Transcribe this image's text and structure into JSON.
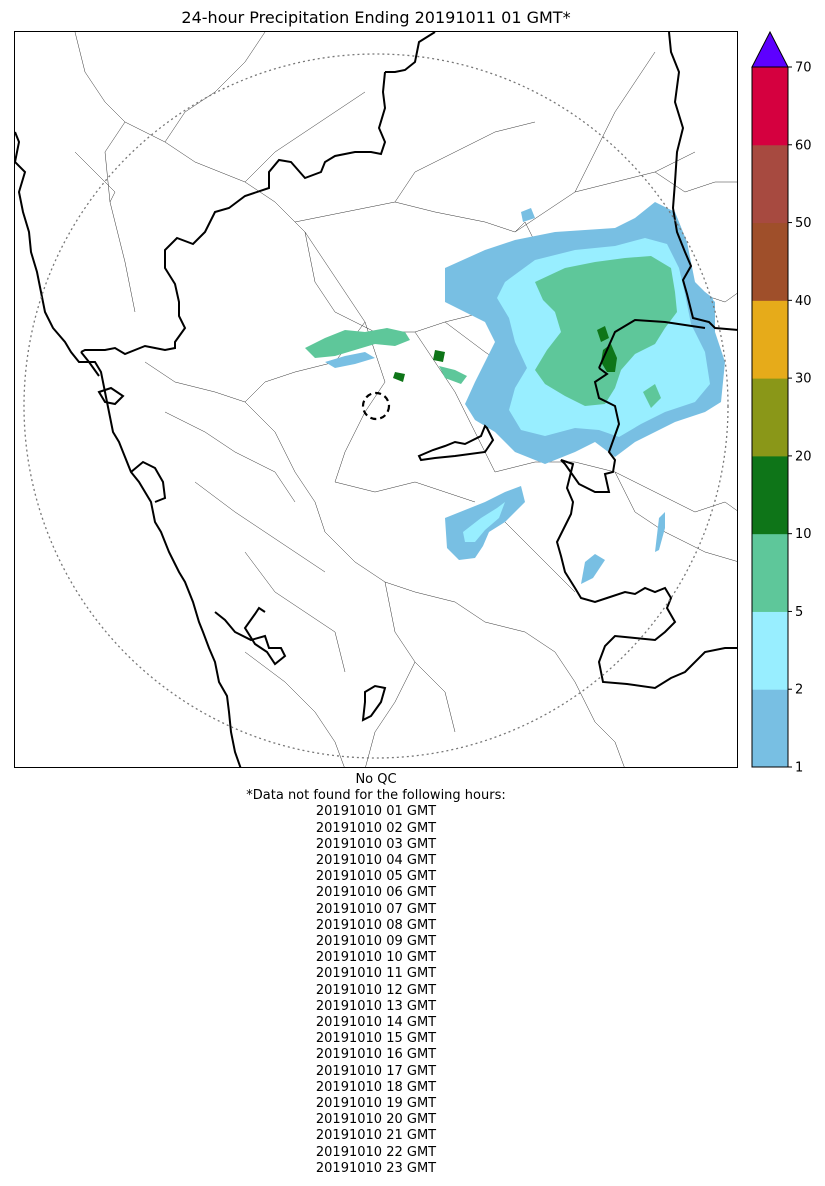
{
  "title": "24-hour Precipitation Ending 20191011 01 GMT*",
  "map": {
    "radar_range_ring": "dotted-circle",
    "radar_site_marker": "dashed-circle",
    "boundaries": [
      "country-borders",
      "state-borders",
      "district-borders",
      "coastline"
    ]
  },
  "colorbar": {
    "levels": [
      1,
      2,
      5,
      10,
      20,
      30,
      40,
      50,
      60,
      70
    ],
    "tick_labels": [
      "1",
      "2",
      "5",
      "10",
      "20",
      "30",
      "40",
      "50",
      "60",
      "70"
    ],
    "colors": [
      "#78bfe3",
      "#98eeff",
      "#5ec79a",
      "#0e7518",
      "#8a9718",
      "#e6ab1a",
      "#9f4f2a",
      "#a74a40",
      "#d5003f"
    ],
    "extend_color": "#5d00ff"
  },
  "notes": {
    "qc": "No QC",
    "missing_header": "*Data not found for the following hours:",
    "missing_hours": [
      "20191010 01 GMT",
      "20191010 02 GMT",
      "20191010 03 GMT",
      "20191010 04 GMT",
      "20191010 05 GMT",
      "20191010 06 GMT",
      "20191010 07 GMT",
      "20191010 08 GMT",
      "20191010 09 GMT",
      "20191010 10 GMT",
      "20191010 11 GMT",
      "20191010 12 GMT",
      "20191010 13 GMT",
      "20191010 14 GMT",
      "20191010 15 GMT",
      "20191010 16 GMT",
      "20191010 17 GMT",
      "20191010 18 GMT",
      "20191010 19 GMT",
      "20191010 20 GMT",
      "20191010 21 GMT",
      "20191010 22 GMT",
      "20191010 23 GMT"
    ]
  }
}
